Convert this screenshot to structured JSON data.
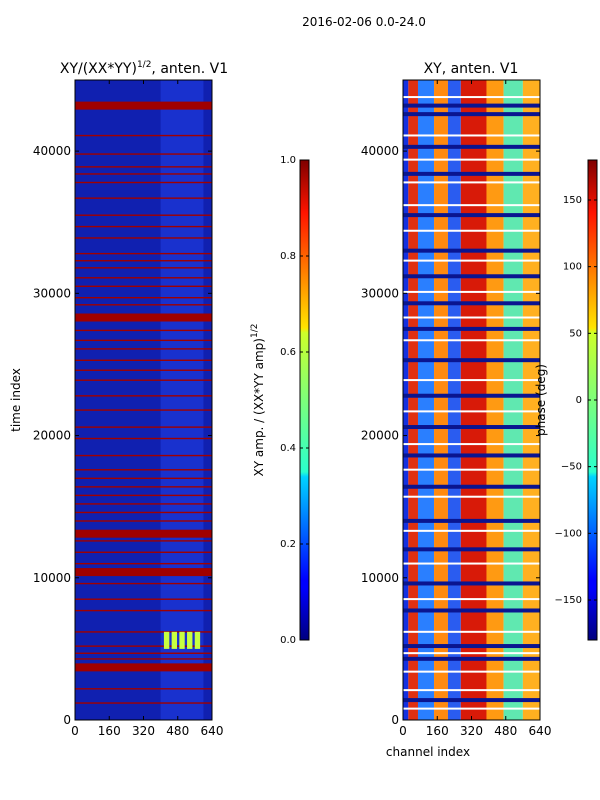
{
  "suptitle": "2016-02-06 0.0-24.0",
  "chart_data": [
    {
      "type": "heatmap",
      "title_main": "XY/(XX*YY)",
      "title_exp": "1/2",
      "title_suffix": ", anten. V1",
      "xlabel": "",
      "ylabel": "time index",
      "xlim": [
        0,
        640
      ],
      "ylim": [
        0,
        45000
      ],
      "xticks": [
        "0",
        "160",
        "320",
        "480",
        "640"
      ],
      "xtick_values": [
        0,
        160,
        320,
        480,
        640
      ],
      "yticks": [
        "0",
        "10000",
        "20000",
        "30000",
        "40000"
      ],
      "ytick_values": [
        0,
        10000,
        20000,
        30000,
        40000
      ],
      "colormap": "jet",
      "background_color": "#1020b0",
      "flag_color": "#a00000",
      "thick_flags_time": [
        43200,
        28300,
        13100,
        10400,
        3700
      ],
      "thin_flags_time": [
        41100,
        39800,
        38900,
        38400,
        37800,
        36700,
        35500,
        34700,
        33900,
        32800,
        32300,
        31800,
        31100,
        30500,
        29700,
        29200,
        27400,
        26700,
        26100,
        25300,
        24600,
        23900,
        22800,
        21800,
        20600,
        19800,
        18600,
        17600,
        17000,
        16400,
        15800,
        15200,
        14600,
        14000,
        12600,
        11800,
        11000,
        9600,
        8500,
        7700,
        6200,
        5200,
        4700,
        4300,
        2200,
        1200
      ],
      "hot_block": {
        "channel_range": [
          410,
          590
        ],
        "time_range": [
          5000,
          6200
        ],
        "color": "#c8ff40"
      },
      "colorbar": {
        "label": "XY amp. / (XX*YY amp)",
        "label_exp": "1/2",
        "range": [
          0.0,
          1.0
        ],
        "ticks": [
          "0.0",
          "0.2",
          "0.4",
          "0.6",
          "0.8",
          "1.0"
        ],
        "tick_values": [
          0.0,
          0.2,
          0.4,
          0.6,
          0.8,
          1.0
        ]
      }
    },
    {
      "type": "heatmap",
      "title": "XY, anten. V1",
      "xlabel": "channel index",
      "ylabel": "",
      "xlim": [
        0,
        640
      ],
      "ylim": [
        0,
        45000
      ],
      "xticks": [
        "0",
        "160",
        "320",
        "480",
        "640"
      ],
      "xtick_values": [
        0,
        160,
        320,
        480,
        640
      ],
      "yticks": [
        "0",
        "10000",
        "20000",
        "30000",
        "40000"
      ],
      "ytick_values": [
        0,
        10000,
        20000,
        30000,
        40000
      ],
      "colormap": "jet",
      "channel_profile": [
        {
          "from": 0,
          "to": 25,
          "color": "#1430e0"
        },
        {
          "from": 25,
          "to": 70,
          "color": "#e03010"
        },
        {
          "from": 70,
          "to": 145,
          "color": "#2a7fff"
        },
        {
          "from": 145,
          "to": 210,
          "color": "#ff8a10"
        },
        {
          "from": 210,
          "to": 270,
          "color": "#2a5cf0"
        },
        {
          "from": 270,
          "to": 390,
          "color": "#d81a08"
        },
        {
          "from": 390,
          "to": 470,
          "color": "#ff9a12"
        },
        {
          "from": 470,
          "to": 560,
          "color": "#60e8b0"
        },
        {
          "from": 560,
          "to": 640,
          "color": "#ffb020"
        }
      ],
      "white_flags_time": [
        43800,
        41100,
        39400,
        37800,
        36200,
        34400,
        32300,
        30100,
        28300,
        26700,
        23900,
        21700,
        19400,
        17600,
        15700,
        13300,
        11000,
        8500,
        6200,
        4700,
        3400,
        2100,
        800
      ],
      "dark_flags_time": [
        43200,
        42600,
        40300,
        38400,
        35500,
        33000,
        31200,
        29300,
        27500,
        25300,
        22800,
        20600,
        18600,
        16400,
        14000,
        12000,
        9600,
        7700,
        5200,
        4300,
        1400
      ],
      "colorbar": {
        "label": "phase (deg)",
        "range": [
          -180,
          180
        ],
        "ticks": [
          "−150",
          "−100",
          "−50",
          "0",
          "50",
          "100",
          "150"
        ],
        "tick_values": [
          -150,
          -100,
          -50,
          0,
          50,
          100,
          150
        ]
      }
    }
  ]
}
